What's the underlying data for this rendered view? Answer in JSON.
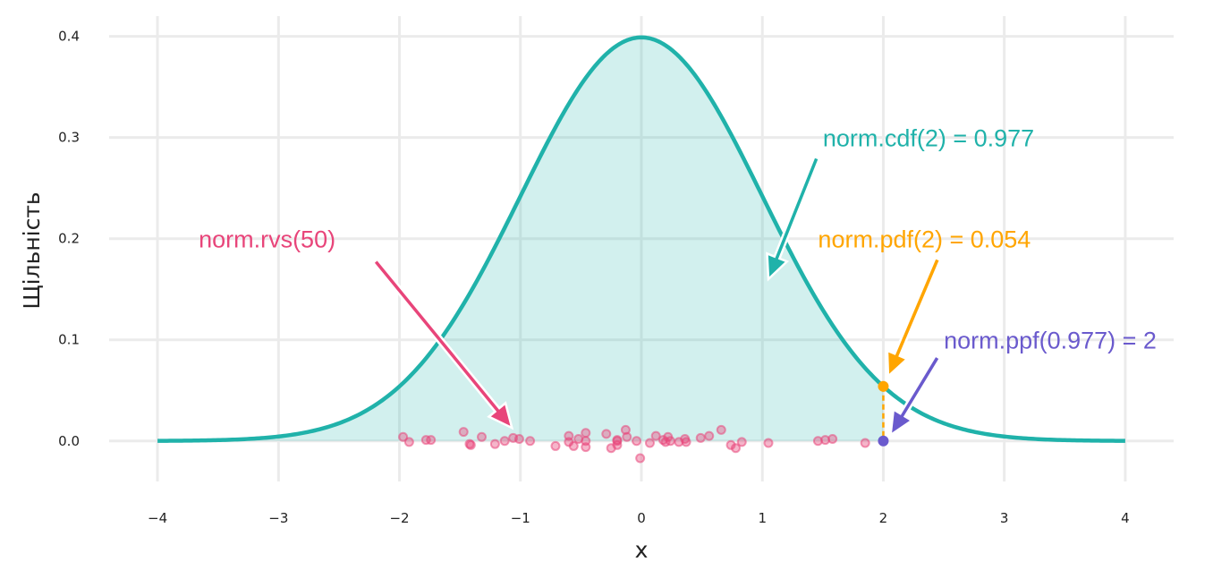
{
  "chart_data": {
    "type": "line",
    "xlabel": "x",
    "ylabel": "Щільність",
    "xlim": [
      -4.4,
      4.4
    ],
    "ylim": [
      -0.04,
      0.42
    ],
    "x_ticks": [
      -4,
      -3,
      -2,
      -1,
      0,
      1,
      2,
      3,
      4
    ],
    "x_tick_labels": [
      "−4",
      "−3",
      "−2",
      "−1",
      "0",
      "1",
      "2",
      "3",
      "4"
    ],
    "y_ticks": [
      0,
      0.1,
      0.2,
      0.3,
      0.4
    ],
    "y_tick_labels": [
      "0.0",
      "0.1",
      "0.2",
      "0.3",
      "0.4"
    ],
    "grid": true,
    "curve": {
      "function": "standard normal pdf",
      "x_range": [
        -4,
        4
      ],
      "color": "#20b2aa",
      "fill_to_x": 2,
      "fill_color": "#20b2aa"
    },
    "points": {
      "color": "#e8457a",
      "samples": [
        [
          -1.97,
          0.004
        ],
        [
          -1.92,
          -0.001
        ],
        [
          -1.78,
          0.001
        ],
        [
          -1.74,
          0.001
        ],
        [
          -1.47,
          0.009
        ],
        [
          -1.42,
          -0.003
        ],
        [
          -1.41,
          -0.004
        ],
        [
          -1.32,
          0.004
        ],
        [
          -1.21,
          -0.003
        ],
        [
          -1.13,
          0.0
        ],
        [
          -1.06,
          0.003
        ],
        [
          -1.01,
          0.002
        ],
        [
          -0.92,
          0.0
        ],
        [
          -0.71,
          -0.005
        ],
        [
          -0.6,
          0.005
        ],
        [
          -0.6,
          -0.001
        ],
        [
          -0.56,
          -0.005
        ],
        [
          -0.52,
          0.002
        ],
        [
          -0.46,
          0.008
        ],
        [
          -0.46,
          -0.006
        ],
        [
          -0.46,
          0.0
        ],
        [
          -0.29,
          0.007
        ],
        [
          -0.25,
          -0.007
        ],
        [
          -0.2,
          -0.004
        ],
        [
          -0.2,
          0.0
        ],
        [
          -0.13,
          0.011
        ],
        [
          -0.12,
          0.004
        ],
        [
          -0.01,
          -0.017
        ],
        [
          0.07,
          -0.002
        ],
        [
          0.12,
          0.005
        ],
        [
          0.18,
          0.001
        ],
        [
          0.2,
          -0.001
        ],
        [
          0.22,
          0.004
        ],
        [
          0.31,
          -0.001
        ],
        [
          0.36,
          0.002
        ],
        [
          0.37,
          -0.001
        ],
        [
          0.49,
          0.003
        ],
        [
          0.56,
          0.005
        ],
        [
          0.66,
          0.011
        ],
        [
          0.74,
          -0.004
        ],
        [
          0.78,
          -0.007
        ],
        [
          0.83,
          -0.001
        ],
        [
          1.05,
          -0.002
        ],
        [
          1.46,
          0.0
        ],
        [
          1.52,
          0.001
        ],
        [
          1.58,
          0.002
        ],
        [
          1.85,
          -0.002
        ],
        [
          -0.04,
          0.0
        ],
        [
          0.24,
          0.0
        ],
        [
          -0.2,
          0.001
        ]
      ]
    },
    "markers": [
      {
        "name": "pdf-point",
        "x": 2,
        "y": 0.054,
        "color": "#ffa500"
      },
      {
        "name": "ppf-point",
        "x": 2,
        "y": 0.0,
        "color": "#6a5acd"
      }
    ],
    "annotations": [
      {
        "text": "norm.cdf(2) = 0.977",
        "color": "#20b2aa",
        "text_x": 1.5,
        "text_y": 0.3,
        "arrow_from": [
          1.45,
          0.28
        ],
        "arrow_to": [
          1.05,
          0.16
        ]
      },
      {
        "text": "norm.pdf(2) = 0.054",
        "color": "#ffa500",
        "text_x": 1.46,
        "text_y": 0.2,
        "arrow_from": [
          2.45,
          0.18
        ],
        "arrow_to": [
          2.04,
          0.064
        ]
      },
      {
        "text": "norm.ppf(0.977) = 2",
        "color": "#6a5acd",
        "text_x": 2.5,
        "text_y": 0.1,
        "arrow_from": [
          2.45,
          0.083
        ],
        "arrow_to": [
          2.06,
          0.006
        ]
      },
      {
        "text": "norm.rvs(50)",
        "color": "#e8457a",
        "text_x": -3.66,
        "text_y": 0.2,
        "arrow_from": [
          -2.2,
          0.178
        ],
        "arrow_to": [
          -1.07,
          0.013
        ]
      }
    ]
  }
}
